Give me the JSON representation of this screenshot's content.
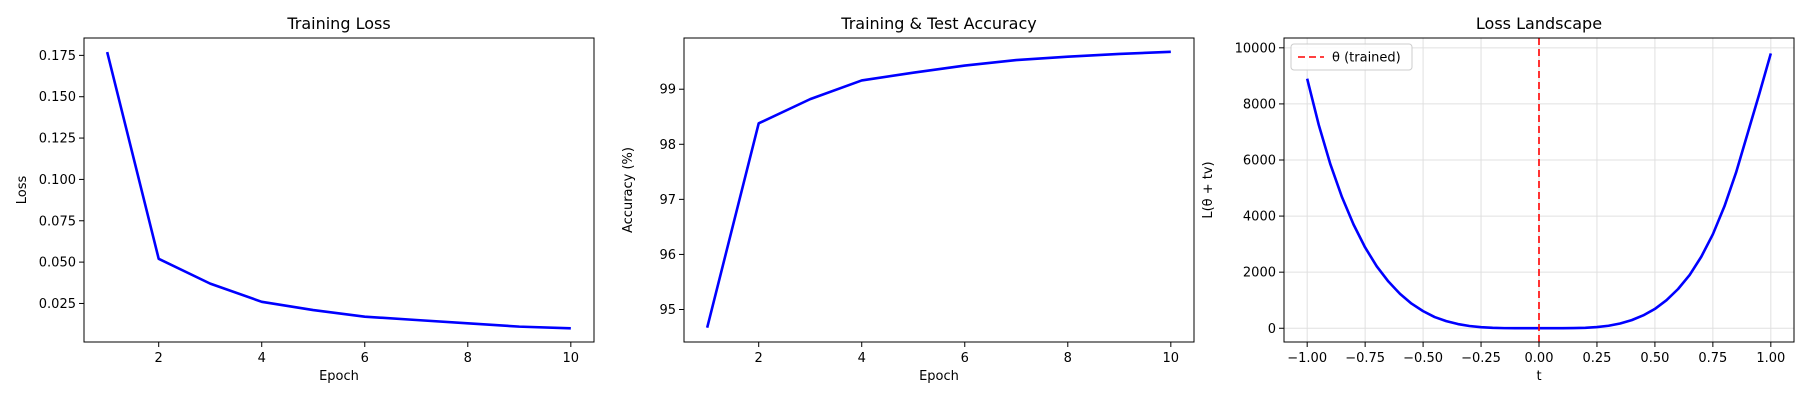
{
  "chart_data": [
    {
      "type": "line",
      "title": "Training Loss",
      "xlabel": "Epoch",
      "ylabel": "Loss",
      "xlim": [
        0.55,
        10.45
      ],
      "ylim": [
        0.0017,
        0.1855
      ],
      "xticks": [
        2,
        4,
        6,
        8,
        10
      ],
      "yticks": [
        0.025,
        0.05,
        0.075,
        0.1,
        0.125,
        0.15,
        0.175
      ],
      "ytick_labels": [
        "0.025",
        "0.050",
        "0.075",
        "0.100",
        "0.125",
        "0.150",
        "0.175"
      ],
      "grid": false,
      "color": "#0000ff",
      "x": [
        1,
        2,
        3,
        4,
        5,
        6,
        7,
        8,
        9,
        10
      ],
      "y": [
        0.177,
        0.052,
        0.037,
        0.026,
        0.021,
        0.017,
        0.015,
        0.013,
        0.011,
        0.01
      ]
    },
    {
      "type": "line",
      "title": "Training & Test Accuracy",
      "xlabel": "Epoch",
      "ylabel": "Accuracy (%)",
      "xlim": [
        0.55,
        10.45
      ],
      "ylim": [
        94.41,
        99.93
      ],
      "xticks": [
        2,
        4,
        6,
        8,
        10
      ],
      "yticks": [
        95,
        96,
        97,
        98,
        99
      ],
      "ytick_labels": [
        "95",
        "96",
        "97",
        "98",
        "99"
      ],
      "grid": false,
      "color": "#0000ff",
      "x": [
        1,
        2,
        3,
        4,
        5,
        6,
        7,
        8,
        9,
        10
      ],
      "y": [
        94.67,
        98.38,
        98.82,
        99.16,
        99.3,
        99.43,
        99.53,
        99.59,
        99.64,
        99.68
      ]
    },
    {
      "type": "line",
      "title": "Loss Landscape",
      "xlabel": "t",
      "ylabel": "L(θ + tv)",
      "xlim": [
        -1.1,
        1.1
      ],
      "ylim": [
        -490,
        10350
      ],
      "xticks": [
        -1,
        -0.75,
        -0.5,
        -0.25,
        0,
        0.25,
        0.5,
        0.75,
        1
      ],
      "xtick_labels": [
        "−1.00",
        "−0.75",
        "−0.50",
        "−0.25",
        "0.00",
        "0.25",
        "0.50",
        "0.75",
        "1.00"
      ],
      "yticks": [
        0,
        2000,
        4000,
        6000,
        8000,
        10000
      ],
      "ytick_labels": [
        "0",
        "2000",
        "4000",
        "6000",
        "8000",
        "10000"
      ],
      "grid": true,
      "color": "#0000ff",
      "x": [
        -1.0,
        -0.95,
        -0.9,
        -0.85,
        -0.8,
        -0.75,
        -0.7,
        -0.65,
        -0.6,
        -0.55,
        -0.5,
        -0.45,
        -0.4,
        -0.35,
        -0.3,
        -0.25,
        -0.2,
        -0.15,
        -0.1,
        -0.05,
        0.0,
        0.05,
        0.1,
        0.15,
        0.2,
        0.25,
        0.3,
        0.35,
        0.4,
        0.45,
        0.5,
        0.55,
        0.6,
        0.65,
        0.7,
        0.75,
        0.8,
        0.85,
        0.9,
        0.95,
        1.0
      ],
      "y": [
        8900,
        7250,
        5850,
        4680,
        3700,
        2880,
        2210,
        1670,
        1230,
        880,
        610,
        400,
        255,
        150,
        80,
        38,
        15,
        5,
        2,
        1,
        1,
        1,
        2,
        6,
        17,
        42,
        90,
        170,
        290,
        460,
        690,
        1000,
        1400,
        1900,
        2550,
        3350,
        4350,
        5550,
        6950,
        8350,
        9800
      ],
      "vline": {
        "x": 0.0,
        "label": "θ (trained)",
        "color": "#ff0000",
        "style": "dashed"
      },
      "legend": "top-left"
    }
  ]
}
